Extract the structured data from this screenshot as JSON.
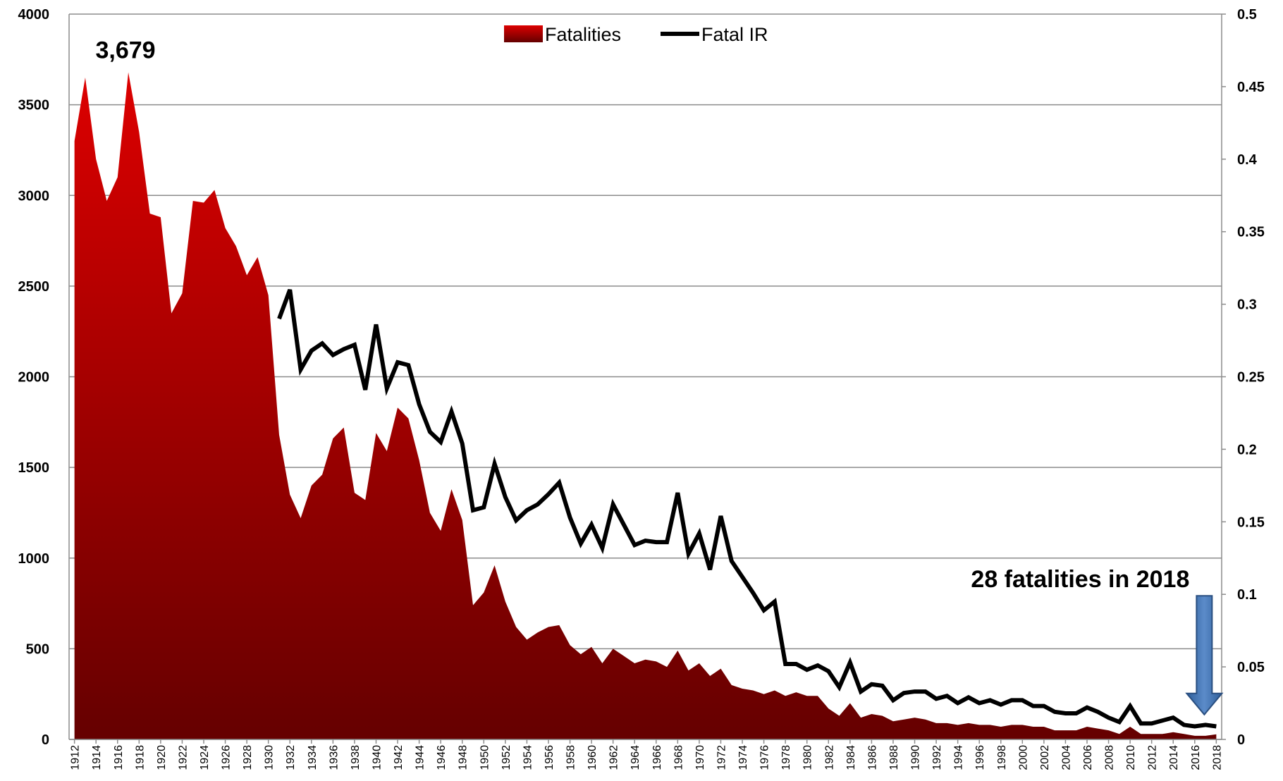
{
  "chart_data": {
    "type": "area-line",
    "x": [
      1912,
      1913,
      1914,
      1915,
      1916,
      1917,
      1918,
      1919,
      1920,
      1921,
      1922,
      1923,
      1924,
      1925,
      1926,
      1927,
      1928,
      1929,
      1930,
      1931,
      1932,
      1933,
      1934,
      1935,
      1936,
      1937,
      1938,
      1939,
      1940,
      1941,
      1942,
      1943,
      1944,
      1945,
      1946,
      1947,
      1948,
      1949,
      1950,
      1951,
      1952,
      1953,
      1954,
      1955,
      1956,
      1957,
      1958,
      1959,
      1960,
      1961,
      1962,
      1963,
      1964,
      1965,
      1966,
      1967,
      1968,
      1969,
      1970,
      1971,
      1972,
      1973,
      1974,
      1975,
      1976,
      1977,
      1978,
      1979,
      1980,
      1981,
      1982,
      1983,
      1984,
      1985,
      1986,
      1987,
      1988,
      1989,
      1990,
      1991,
      1992,
      1993,
      1994,
      1995,
      1996,
      1997,
      1998,
      1999,
      2000,
      2001,
      2002,
      2003,
      2004,
      2005,
      2006,
      2007,
      2008,
      2009,
      2010,
      2011,
      2012,
      2013,
      2014,
      2015,
      2016,
      2017,
      2018
    ],
    "series": [
      {
        "name": "Fatalities",
        "color": "#c00000",
        "values": [
          3300,
          3650,
          3200,
          2970,
          3100,
          3679,
          3350,
          2900,
          2880,
          2350,
          2460,
          2970,
          2960,
          3030,
          2820,
          2720,
          2560,
          2660,
          2450,
          1680,
          1350,
          1220,
          1400,
          1460,
          1660,
          1720,
          1360,
          1320,
          1690,
          1590,
          1830,
          1770,
          1540,
          1250,
          1150,
          1380,
          1210,
          740,
          810,
          960,
          760,
          620,
          550,
          590,
          620,
          630,
          520,
          470,
          510,
          420,
          500,
          460,
          420,
          440,
          430,
          400,
          490,
          380,
          420,
          350,
          390,
          300,
          280,
          270,
          250,
          270,
          240,
          260,
          240,
          240,
          170,
          130,
          200,
          120,
          140,
          130,
          100,
          110,
          120,
          110,
          90,
          90,
          80,
          90,
          80,
          80,
          70,
          80,
          80,
          70,
          70,
          50,
          50,
          50,
          70,
          60,
          50,
          30,
          70,
          30,
          30,
          30,
          40,
          30,
          20,
          20,
          28
        ]
      },
      {
        "name": "Fatal IR",
        "color": "#000000",
        "axis": "y2",
        "values": [
          null,
          null,
          null,
          null,
          null,
          null,
          null,
          null,
          null,
          null,
          null,
          null,
          null,
          null,
          null,
          null,
          null,
          null,
          null,
          0.29,
          0.31,
          0.255,
          0.268,
          0.273,
          0.265,
          0.269,
          0.272,
          0.241,
          0.286,
          0.242,
          0.26,
          0.258,
          0.231,
          0.212,
          0.205,
          0.226,
          0.204,
          0.158,
          0.16,
          0.19,
          0.167,
          0.151,
          0.158,
          0.162,
          0.169,
          0.177,
          0.153,
          0.135,
          0.148,
          0.132,
          0.162,
          0.148,
          0.134,
          0.137,
          0.136,
          0.136,
          0.17,
          0.128,
          0.142,
          0.117,
          0.154,
          0.123,
          0.112,
          0.101,
          0.089,
          0.095,
          0.052,
          0.052,
          0.048,
          0.051,
          0.047,
          0.036,
          0.053,
          0.033,
          0.038,
          0.037,
          0.027,
          0.032,
          0.033,
          0.033,
          0.028,
          0.03,
          0.025,
          0.029,
          0.025,
          0.027,
          0.024,
          0.027,
          0.027,
          0.023,
          0.023,
          0.019,
          0.018,
          0.018,
          0.022,
          0.019,
          0.015,
          0.012,
          0.023,
          0.011,
          0.011,
          0.013,
          0.015,
          0.01,
          0.009,
          0.01,
          0.009
        ]
      }
    ],
    "xlim": [
      1911.5,
      2018.5
    ],
    "xticks": [
      1912,
      1914,
      1916,
      1918,
      1920,
      1922,
      1924,
      1926,
      1928,
      1930,
      1932,
      1934,
      1936,
      1938,
      1940,
      1942,
      1944,
      1946,
      1948,
      1950,
      1952,
      1954,
      1956,
      1958,
      1960,
      1962,
      1964,
      1966,
      1968,
      1970,
      1972,
      1974,
      1976,
      1978,
      1980,
      1982,
      1984,
      1986,
      1988,
      1990,
      1992,
      1994,
      1996,
      1998,
      2000,
      2002,
      2004,
      2006,
      2008,
      2010,
      2012,
      2014,
      2016,
      2018
    ],
    "ylim": [
      0,
      4000
    ],
    "yticks": [
      0,
      500,
      1000,
      1500,
      2000,
      2500,
      3000,
      3500,
      4000
    ],
    "y2lim": [
      0,
      0.5
    ],
    "y2ticks": [
      0,
      0.05,
      0.1,
      0.15,
      0.2,
      0.25,
      0.3,
      0.35,
      0.4,
      0.45,
      0.5
    ],
    "grid": true,
    "legend": "top",
    "annotations": [
      {
        "text": "3,679",
        "x": 1917,
        "y": 3679
      },
      {
        "text": "28 fatalities in 2018",
        "x": 2018,
        "y": 28
      }
    ]
  }
}
